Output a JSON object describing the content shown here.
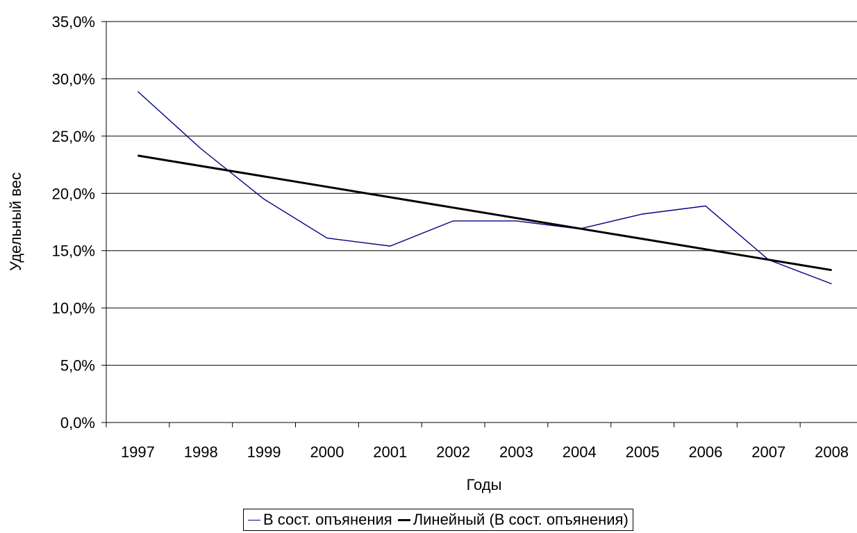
{
  "chart_data": {
    "type": "line",
    "xlabel": "Годы",
    "ylabel": "Удельный вес",
    "categories": [
      "1997",
      "1998",
      "1999",
      "2000",
      "2001",
      "2002",
      "2003",
      "2004",
      "2005",
      "2006",
      "2007",
      "2008"
    ],
    "ylim": [
      0,
      35
    ],
    "yticks": [
      "0,0%",
      "5,0%",
      "10,0%",
      "15,0%",
      "20,0%",
      "25,0%",
      "30,0%",
      "35,0%"
    ],
    "grid": "horizontal",
    "legend_position": "bottom",
    "series": [
      {
        "name": "В сост. опъянения",
        "color": "#000080",
        "values": [
          28.9,
          23.9,
          19.5,
          16.1,
          15.4,
          17.6,
          17.6,
          16.9,
          18.2,
          18.9,
          14.2,
          12.1
        ]
      },
      {
        "name": "Линейный (В сост. опъянения)",
        "color": "#000000",
        "values": [
          23.3,
          22.4,
          21.5,
          20.6,
          19.7,
          18.8,
          17.8,
          16.9,
          16.0,
          15.1,
          14.2,
          13.3
        ]
      }
    ]
  }
}
